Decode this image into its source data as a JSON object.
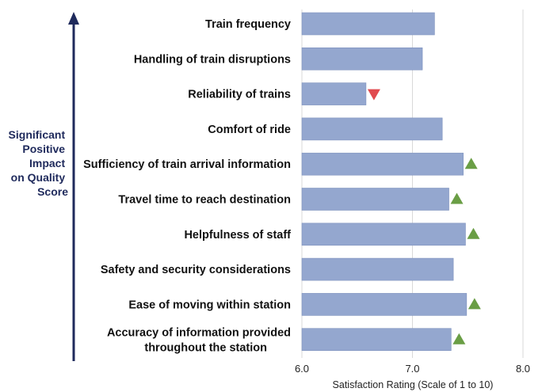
{
  "chart_data": {
    "type": "bar",
    "orientation": "horizontal",
    "categories": [
      "Train frequency",
      "Handling of train disruptions",
      "Reliability of trains",
      "Comfort of ride",
      "Sufficiency of train arrival information",
      "Travel time to reach destination",
      "Helpfulness of staff",
      "Safety and security considerations",
      "Ease of moving within station",
      "Accuracy of information provided throughout the station"
    ],
    "values": [
      7.2,
      7.09,
      6.58,
      7.27,
      7.46,
      7.33,
      7.48,
      7.37,
      7.49,
      7.35
    ],
    "markers": [
      "none",
      "none",
      "down",
      "none",
      "up",
      "up",
      "up",
      "none",
      "up",
      "up"
    ],
    "xlabel": "Satisfaction Rating (Scale of 1 to 10)",
    "xlim": [
      6.0,
      8.0
    ],
    "xticks": [
      "6.0",
      "7.0",
      "8.0"
    ],
    "grid": true,
    "side_annotation": [
      "Significant",
      "Positive",
      "Impact",
      "on Quality",
      "Score"
    ],
    "colors": {
      "bar": "#94a7cf",
      "bar_edge": "#7f93bf",
      "up_marker": "#6a9e45",
      "down_marker": "#e14a4f",
      "arrow": "#1f2a5c",
      "grid": "#d9d9d9"
    }
  }
}
